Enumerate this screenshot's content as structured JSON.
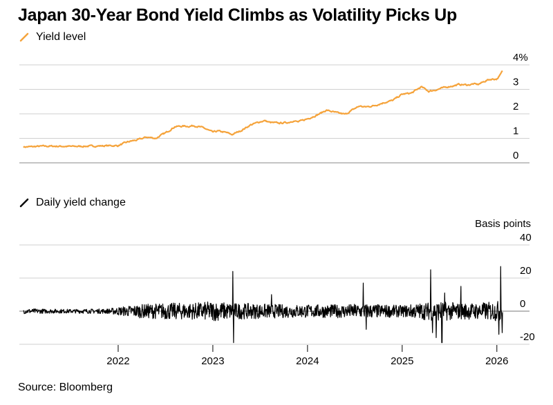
{
  "title": "Japan 30-Year Bond Yield Climbs as Volatility Picks Up",
  "source": "Source: Bloomberg",
  "colors": {
    "yield": "#F5A33B",
    "change": "#000000",
    "grid": "#CFCFCF",
    "zero_line": "#7A7A7A"
  },
  "chart_data": [
    {
      "type": "line",
      "title": "Japan 30-Year Bond Yield Climbs as Volatility Picks Up",
      "legend": "Yield level",
      "series_color": "#F5A33B",
      "ylim": [
        0,
        4
      ],
      "y_ticks": [
        "0",
        "1",
        "2",
        "3",
        "4%"
      ],
      "y_tick_values": [
        0,
        1,
        2,
        3,
        4
      ],
      "grid": true,
      "xlim": [
        2021.0,
        2026.2
      ],
      "x_ticks": [
        "2022",
        "2023",
        "2024",
        "2025",
        "2026"
      ],
      "x_tick_values": [
        2022,
        2023,
        2024,
        2025,
        2026
      ],
      "x": [
        2021.0,
        2021.1,
        2021.2,
        2021.3,
        2021.5,
        2021.7,
        2021.9,
        2022.0,
        2022.05,
        2022.1,
        2022.15,
        2022.2,
        2022.3,
        2022.4,
        2022.45,
        2022.5,
        2022.6,
        2022.7,
        2022.75,
        2022.8,
        2022.9,
        2023.0,
        2023.05,
        2023.15,
        2023.2,
        2023.3,
        2023.4,
        2023.5,
        2023.55,
        2023.6,
        2023.7,
        2023.8,
        2023.85,
        2023.9,
        2024.0,
        2024.1,
        2024.15,
        2024.2,
        2024.3,
        2024.4,
        2024.45,
        2024.5,
        2024.55,
        2024.6,
        2024.65,
        2024.7,
        2024.8,
        2024.9,
        2025.0,
        2025.1,
        2025.2,
        2025.25,
        2025.28,
        2025.32,
        2025.38,
        2025.4,
        2025.5,
        2025.55,
        2025.6,
        2025.7,
        2025.75,
        2025.8,
        2025.9,
        2025.95,
        2026.0,
        2026.03,
        2026.06
      ],
      "values": [
        0.65,
        0.66,
        0.68,
        0.68,
        0.67,
        0.68,
        0.7,
        0.7,
        0.78,
        0.85,
        0.9,
        0.93,
        1.05,
        1.0,
        1.12,
        1.22,
        1.48,
        1.5,
        1.49,
        1.52,
        1.43,
        1.25,
        1.3,
        1.23,
        1.15,
        1.32,
        1.55,
        1.68,
        1.72,
        1.65,
        1.62,
        1.65,
        1.72,
        1.67,
        1.8,
        1.95,
        2.05,
        2.15,
        2.05,
        1.98,
        2.1,
        2.22,
        2.32,
        2.28,
        2.3,
        2.33,
        2.45,
        2.55,
        2.8,
        2.85,
        3.1,
        3.0,
        2.92,
        2.95,
        3.0,
        3.03,
        3.12,
        3.15,
        3.2,
        3.18,
        3.22,
        3.2,
        3.38,
        3.42,
        3.42,
        3.55,
        3.75
      ]
    },
    {
      "type": "line",
      "legend": "Daily yield change",
      "ylabel": "Basis points",
      "series_color": "#000000",
      "ylim": [
        -20,
        40
      ],
      "y_ticks": [
        "40",
        "20",
        "0",
        "-20"
      ],
      "y_tick_values": [
        40,
        20,
        0,
        -20
      ],
      "grid": true,
      "xlim": [
        2021.0,
        2026.2
      ],
      "x_ticks": [
        "2022",
        "2023",
        "2024",
        "2025",
        "2026"
      ],
      "x_tick_values": [
        2022,
        2023,
        2024,
        2025,
        2026
      ],
      "volatility_profile": {
        "x": [
          2021.0,
          2021.5,
          2021.9,
          2022.0,
          2022.2,
          2022.5,
          2022.8,
          2023.0,
          2023.2,
          2023.5,
          2023.8,
          2024.0,
          2024.3,
          2024.6,
          2024.8,
          2025.0,
          2025.2,
          2025.4,
          2025.6,
          2025.8,
          2026.0,
          2026.06
        ],
        "amplitude_bp": [
          1.5,
          1.2,
          1.5,
          2.5,
          4,
          5,
          5,
          6,
          5,
          4.5,
          4,
          4,
          4,
          4.5,
          4,
          3.5,
          5,
          6,
          5,
          5,
          6,
          7
        ]
      },
      "spikes": [
        {
          "x": 2023.21,
          "value": 24
        },
        {
          "x": 2023.22,
          "value": -19
        },
        {
          "x": 2023.62,
          "value": 10
        },
        {
          "x": 2024.59,
          "value": 17
        },
        {
          "x": 2024.62,
          "value": -11
        },
        {
          "x": 2025.3,
          "value": 25
        },
        {
          "x": 2025.32,
          "value": -13
        },
        {
          "x": 2025.36,
          "value": -16
        },
        {
          "x": 2025.42,
          "value": -19
        },
        {
          "x": 2025.45,
          "value": 11
        },
        {
          "x": 2025.62,
          "value": 15
        },
        {
          "x": 2026.02,
          "value": -14
        },
        {
          "x": 2026.04,
          "value": 27
        },
        {
          "x": 2026.055,
          "value": -13
        }
      ]
    }
  ]
}
